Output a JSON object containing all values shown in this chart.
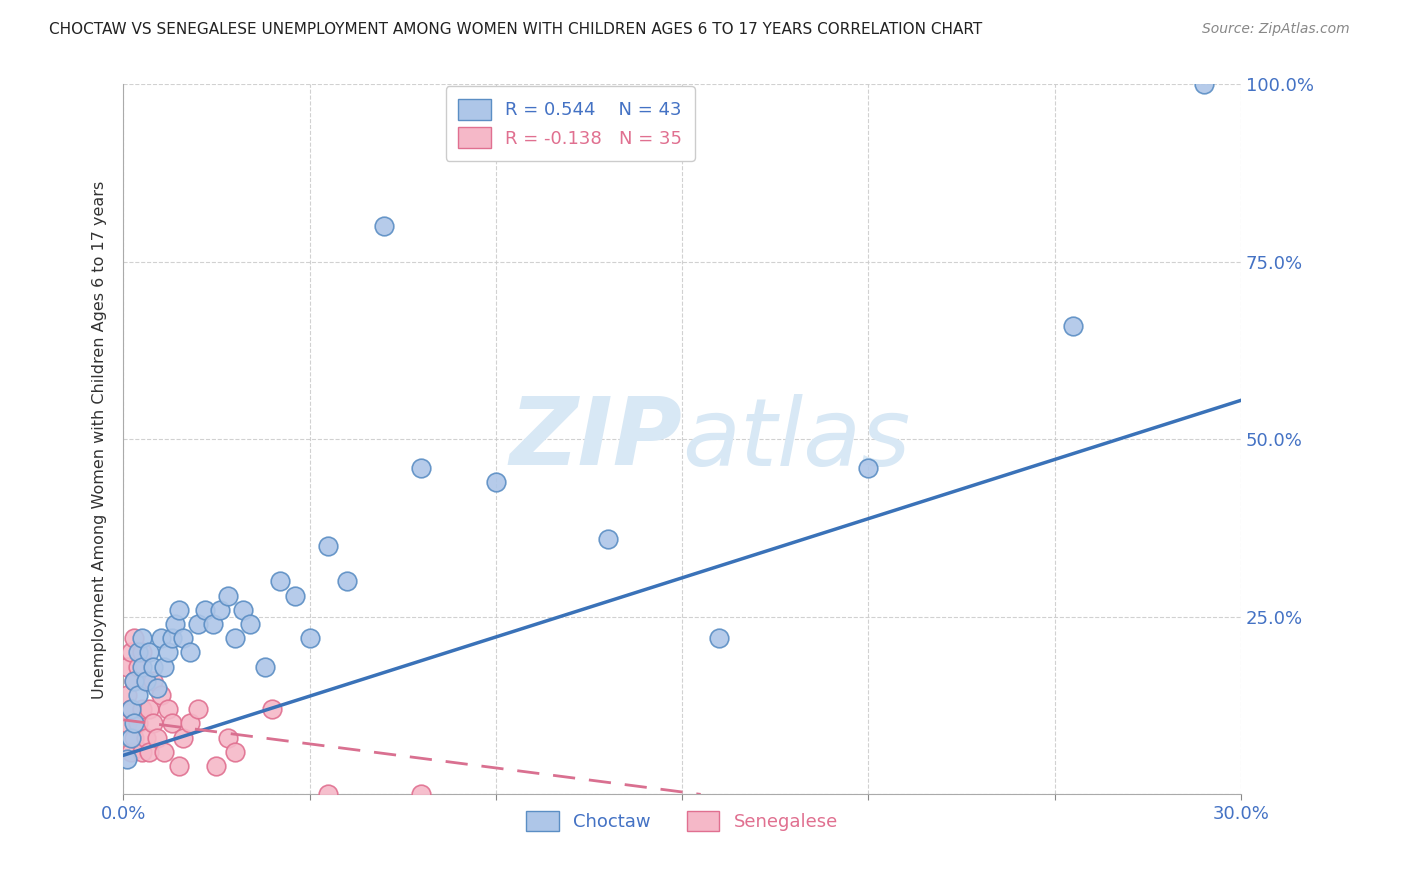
{
  "title": "CHOCTAW VS SENEGALESE UNEMPLOYMENT AMONG WOMEN WITH CHILDREN AGES 6 TO 17 YEARS CORRELATION CHART",
  "source": "Source: ZipAtlas.com",
  "ylabel": "Unemployment Among Women with Children Ages 6 to 17 years",
  "xlim": [
    0.0,
    0.3
  ],
  "ylim": [
    0.0,
    1.0
  ],
  "xticks": [
    0.0,
    0.05,
    0.1,
    0.15,
    0.2,
    0.25,
    0.3
  ],
  "yticks": [
    0.0,
    0.25,
    0.5,
    0.75,
    1.0
  ],
  "legend_blue_r": "R = 0.544",
  "legend_blue_n": "N = 43",
  "legend_pink_r": "R = -0.138",
  "legend_pink_n": "N = 35",
  "choctaw_face_color": "#aec6e8",
  "choctaw_edge_color": "#5b8ec4",
  "senegalese_face_color": "#f5b8c8",
  "senegalese_edge_color": "#e07090",
  "choctaw_line_color": "#3a72b8",
  "senegalese_line_color": "#d97090",
  "watermark_color": "#d8e8f5",
  "choctaw_x": [
    0.001,
    0.002,
    0.002,
    0.003,
    0.003,
    0.004,
    0.004,
    0.005,
    0.005,
    0.006,
    0.007,
    0.008,
    0.009,
    0.01,
    0.011,
    0.012,
    0.013,
    0.014,
    0.015,
    0.016,
    0.018,
    0.02,
    0.022,
    0.024,
    0.026,
    0.028,
    0.03,
    0.032,
    0.034,
    0.038,
    0.042,
    0.046,
    0.05,
    0.055,
    0.06,
    0.07,
    0.08,
    0.1,
    0.13,
    0.16,
    0.2,
    0.255,
    0.29
  ],
  "choctaw_y": [
    0.05,
    0.08,
    0.12,
    0.1,
    0.16,
    0.14,
    0.2,
    0.18,
    0.22,
    0.16,
    0.2,
    0.18,
    0.15,
    0.22,
    0.18,
    0.2,
    0.22,
    0.24,
    0.26,
    0.22,
    0.2,
    0.24,
    0.26,
    0.24,
    0.26,
    0.28,
    0.22,
    0.26,
    0.24,
    0.18,
    0.3,
    0.28,
    0.22,
    0.35,
    0.3,
    0.8,
    0.46,
    0.44,
    0.36,
    0.22,
    0.46,
    0.66,
    1.0
  ],
  "senegalese_x": [
    0.001,
    0.001,
    0.001,
    0.002,
    0.002,
    0.002,
    0.003,
    0.003,
    0.003,
    0.004,
    0.004,
    0.005,
    0.005,
    0.005,
    0.006,
    0.006,
    0.007,
    0.007,
    0.008,
    0.008,
    0.009,
    0.01,
    0.011,
    0.012,
    0.013,
    0.015,
    0.016,
    0.018,
    0.02,
    0.025,
    0.028,
    0.03,
    0.04,
    0.055,
    0.08
  ],
  "senegalese_y": [
    0.1,
    0.14,
    0.18,
    0.06,
    0.12,
    0.2,
    0.08,
    0.16,
    0.22,
    0.1,
    0.18,
    0.06,
    0.12,
    0.2,
    0.08,
    0.16,
    0.06,
    0.12,
    0.1,
    0.16,
    0.08,
    0.14,
    0.06,
    0.12,
    0.1,
    0.04,
    0.08,
    0.1,
    0.12,
    0.04,
    0.08,
    0.06,
    0.12,
    0.0,
    0.0
  ],
  "choctaw_line_x0": 0.0,
  "choctaw_line_y0": 0.055,
  "choctaw_line_x1": 0.3,
  "choctaw_line_y1": 0.555,
  "senegalese_line_x0": 0.0,
  "senegalese_line_y0": 0.105,
  "senegalese_line_x1": 0.155,
  "senegalese_line_y1": 0.0
}
